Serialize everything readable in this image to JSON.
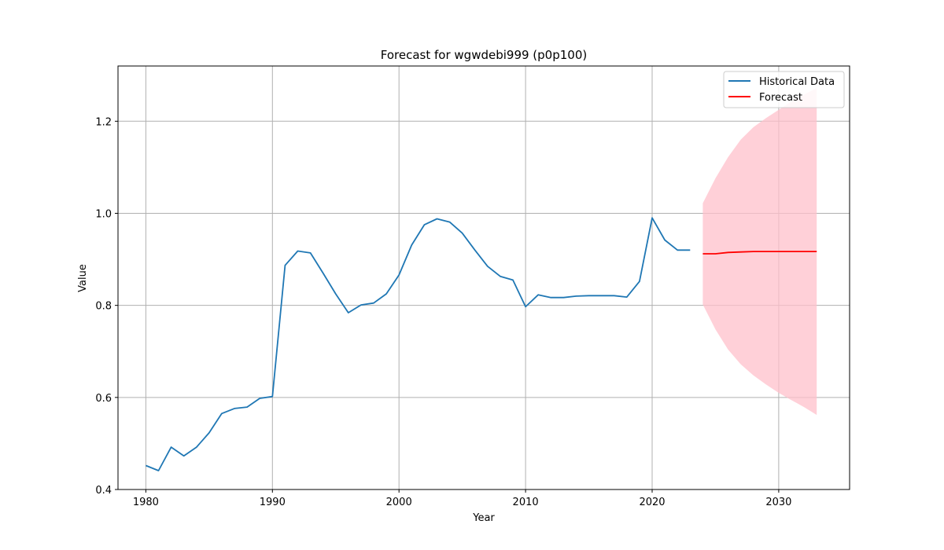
{
  "chart_data": {
    "type": "line",
    "title": "Forecast for wgwdebi999 (p0p100)",
    "xlabel": "Year",
    "ylabel": "Value",
    "xlim": [
      1977.8,
      2035.6
    ],
    "ylim": [
      0.4,
      1.32
    ],
    "xticks": [
      1980,
      1990,
      2000,
      2010,
      2020,
      2030
    ],
    "yticks": [
      0.4,
      0.6,
      0.8,
      1.0,
      1.2
    ],
    "ytick_labels": [
      "0.4",
      "0.6",
      "0.8",
      "1.0",
      "1.2"
    ],
    "grid": true,
    "legend_position": "top-right",
    "series": [
      {
        "name": "Historical Data",
        "color": "#1f77b4",
        "x": [
          1980,
          1981,
          1982,
          1983,
          1984,
          1985,
          1986,
          1987,
          1988,
          1989,
          1990,
          1991,
          1992,
          1993,
          1994,
          1995,
          1996,
          1997,
          1998,
          1999,
          2000,
          2001,
          2002,
          2003,
          2004,
          2005,
          2006,
          2007,
          2008,
          2009,
          2010,
          2011,
          2012,
          2013,
          2014,
          2015,
          2016,
          2017,
          2018,
          2019,
          2020,
          2021,
          2022,
          2023
        ],
        "y": [
          0.452,
          0.441,
          0.492,
          0.473,
          0.492,
          0.523,
          0.565,
          0.576,
          0.579,
          0.598,
          0.602,
          0.887,
          0.918,
          0.914,
          0.87,
          0.825,
          0.784,
          0.801,
          0.805,
          0.825,
          0.866,
          0.931,
          0.975,
          0.988,
          0.981,
          0.957,
          0.92,
          0.885,
          0.863,
          0.855,
          0.797,
          0.823,
          0.817,
          0.817,
          0.82,
          0.821,
          0.821,
          0.821,
          0.818,
          0.852,
          0.99,
          0.942,
          0.92,
          0.92
        ]
      },
      {
        "name": "Forecast",
        "color": "#ff0000",
        "x": [
          2024,
          2025,
          2026,
          2027,
          2028,
          2029,
          2030,
          2031,
          2032,
          2033
        ],
        "y": [
          0.912,
          0.912,
          0.915,
          0.916,
          0.917,
          0.917,
          0.917,
          0.917,
          0.917,
          0.917
        ],
        "lower": [
          0.802,
          0.748,
          0.704,
          0.672,
          0.648,
          0.628,
          0.61,
          0.594,
          0.579,
          0.562
        ],
        "upper": [
          1.022,
          1.076,
          1.122,
          1.16,
          1.187,
          1.207,
          1.225,
          1.243,
          1.258,
          1.272
        ],
        "band_color": "#ffc0cb"
      }
    ]
  }
}
